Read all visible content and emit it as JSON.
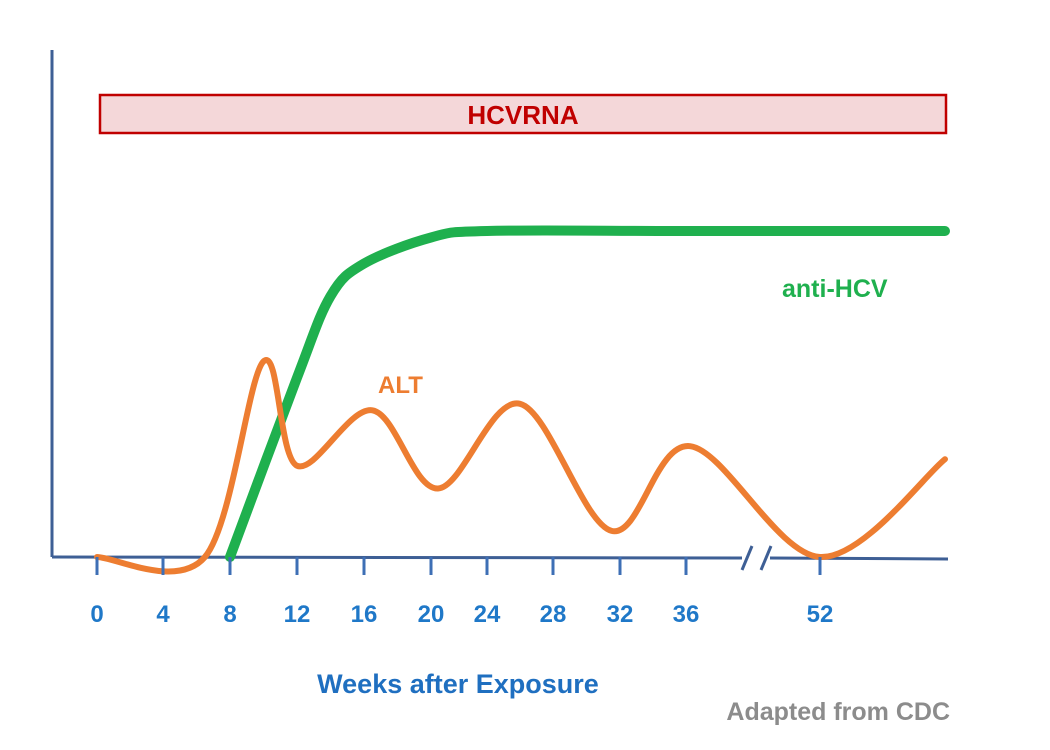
{
  "chart_data": {
    "type": "line",
    "title": "",
    "xlabel": "Weeks after Exposure",
    "ylabel": "",
    "source_note": "Adapted from CDC",
    "x_ticks": [
      "0",
      "4",
      "8",
      "12",
      "16",
      "20",
      "24",
      "28",
      "32",
      "36",
      "52"
    ],
    "x_axis_break": "between 36 and 52",
    "band": {
      "label": "HCVRNA",
      "x_start": 0,
      "x_end": "beyond 52",
      "fill": "#f4d7d9",
      "stroke": "#c00000"
    },
    "series": [
      {
        "name": "anti-HCV",
        "color": "#1fb04e",
        "relative_level": [
          {
            "x": 8,
            "y": 0
          },
          {
            "x": 12,
            "y": 0.55
          },
          {
            "x": 14,
            "y": 0.8
          },
          {
            "x": 16,
            "y": 0.9
          },
          {
            "x": 20,
            "y": 0.98
          },
          {
            "x": 24,
            "y": 1.0
          },
          {
            "x": 36,
            "y": 1.0
          },
          {
            "x": "beyond 52",
            "y": 1.0
          }
        ]
      },
      {
        "name": "ALT",
        "color": "#ed7d31",
        "relative_level": [
          {
            "x": 0,
            "y": 0
          },
          {
            "x": 6.5,
            "y": 0
          },
          {
            "x": 10,
            "y": 0.6
          },
          {
            "x": 12,
            "y": 0.28
          },
          {
            "x": 16.5,
            "y": 0.45
          },
          {
            "x": 20.5,
            "y": 0.21
          },
          {
            "x": 26,
            "y": 0.47
          },
          {
            "x": 31.5,
            "y": 0.08
          },
          {
            "x": 36.5,
            "y": 0.34
          },
          {
            "x": 52,
            "y": 0
          },
          {
            "x": "beyond 52",
            "y": 0.3
          }
        ]
      }
    ],
    "grid": false,
    "legend": "none (series labelled directly)"
  }
}
